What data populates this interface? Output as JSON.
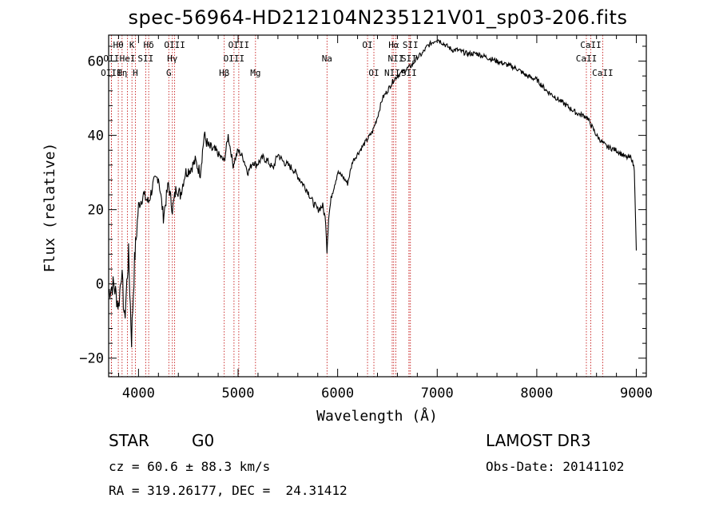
{
  "chart_data": {
    "type": "line",
    "title": "spec-56964-HD212104N235121V01_sp03-206.fits",
    "xlabel": "Wavelength (Å)",
    "ylabel": "Flux (relative)",
    "xlim": [
      3700,
      9100
    ],
    "ylim": [
      -25,
      67
    ],
    "xticks": [
      "4000",
      "5000",
      "6000",
      "7000",
      "8000",
      "9000"
    ],
    "yticks": [
      "−20",
      "0",
      "20",
      "40",
      "60"
    ],
    "series": [
      {
        "name": "spectrum",
        "x": [
          3700,
          3750,
          3800,
          3830,
          3860,
          3900,
          3930,
          3960,
          3970,
          4000,
          4050,
          4100,
          4150,
          4200,
          4250,
          4300,
          4340,
          4380,
          4420,
          4470,
          4520,
          4570,
          4620,
          4660,
          4700,
          4750,
          4800,
          4861,
          4900,
          4950,
          5000,
          5050,
          5100,
          5150,
          5180,
          5250,
          5300,
          5350,
          5400,
          5450,
          5500,
          5550,
          5600,
          5650,
          5700,
          5750,
          5800,
          5850,
          5880,
          5893,
          5910,
          5940,
          6000,
          6050,
          6100,
          6150,
          6200,
          6250,
          6300,
          6350,
          6400,
          6450,
          6500,
          6563,
          6600,
          6650,
          6700,
          6750,
          6800,
          6850,
          6900,
          6950,
          7000,
          7050,
          7100,
          7150,
          7200,
          7300,
          7400,
          7500,
          7600,
          7700,
          7800,
          7900,
          8000,
          8100,
          8200,
          8300,
          8400,
          8500,
          8542,
          8600,
          8662,
          8700,
          8800,
          8900,
          8950,
          8980,
          9000
        ],
        "values": [
          -2,
          0,
          -6,
          4,
          -10,
          8,
          -15,
          6,
          10,
          21,
          24,
          22,
          27,
          29,
          18,
          27,
          20,
          26,
          24,
          30,
          31,
          33,
          30,
          40,
          37,
          36,
          35,
          33,
          40,
          32,
          36,
          34,
          30,
          33,
          32,
          34,
          33,
          31,
          35,
          33,
          32,
          31,
          29,
          27,
          25,
          22,
          20,
          21,
          17,
          9,
          18,
          24,
          30,
          29,
          27,
          33,
          35,
          37,
          39,
          41,
          45,
          50,
          52,
          55,
          56,
          57,
          58,
          59,
          61,
          62,
          64,
          65,
          66,
          65,
          64,
          63,
          63,
          62,
          62,
          61,
          60,
          59,
          58,
          56,
          55,
          52,
          50,
          48,
          46,
          45,
          43,
          40,
          38,
          37,
          36,
          34,
          34,
          31,
          9
        ]
      }
    ],
    "line_markers": [
      {
        "label": "Hθ",
        "wavelength": 3797,
        "row": 0
      },
      {
        "label": "OII",
        "wavelength": 3727,
        "row": 1
      },
      {
        "label": "OIII",
        "wavelength": 3727,
        "row": 2
      },
      {
        "label": "HeI",
        "wavelength": 3889,
        "row": 1
      },
      {
        "label": "Hη",
        "wavelength": 3835,
        "row": 2
      },
      {
        "label": "K",
        "wavelength": 3934,
        "row": 0
      },
      {
        "label": "SII",
        "wavelength": 4072,
        "row": 1
      },
      {
        "label": "H",
        "wavelength": 3968,
        "row": 2
      },
      {
        "label": "Hδ",
        "wavelength": 4102,
        "row": 0
      },
      {
        "label": "OIII",
        "wavelength": 4363,
        "row": 0
      },
      {
        "label": "Hγ",
        "wavelength": 4340,
        "row": 1
      },
      {
        "label": "G",
        "wavelength": 4304,
        "row": 2
      },
      {
        "label": "Hβ",
        "wavelength": 4861,
        "row": 2
      },
      {
        "label": "OIII",
        "wavelength": 5007,
        "row": 0
      },
      {
        "label": "OIII",
        "wavelength": 4959,
        "row": 1
      },
      {
        "label": "Mg",
        "wavelength": 5175,
        "row": 2
      },
      {
        "label": "Na",
        "wavelength": 5893,
        "row": 1
      },
      {
        "label": "OI",
        "wavelength": 6300,
        "row": 0
      },
      {
        "label": "OI",
        "wavelength": 6364,
        "row": 2
      },
      {
        "label": "Hα",
        "wavelength": 6563,
        "row": 0
      },
      {
        "label": "SII",
        "wavelength": 6731,
        "row": 0
      },
      {
        "label": "NII",
        "wavelength": 6584,
        "row": 1
      },
      {
        "label": "NII",
        "wavelength": 6548,
        "row": 2
      },
      {
        "label": "SII",
        "wavelength": 6716,
        "row": 1
      },
      {
        "label": "SII",
        "wavelength": 6716,
        "row": 2
      },
      {
        "label": "CaII",
        "wavelength": 8542,
        "row": 0
      },
      {
        "label": "CaII",
        "wavelength": 8498,
        "row": 1
      },
      {
        "label": "CaII",
        "wavelength": 8662,
        "row": 2
      }
    ]
  },
  "info": {
    "object_class": "STAR",
    "subclass": "G0",
    "redshift": "cz = 60.6 ± 88.3 km/s",
    "coords": "RA = 319.26177, DEC =  24.31412",
    "survey": "LAMOST DR3",
    "obs_date": "Obs-Date: 20141102"
  }
}
